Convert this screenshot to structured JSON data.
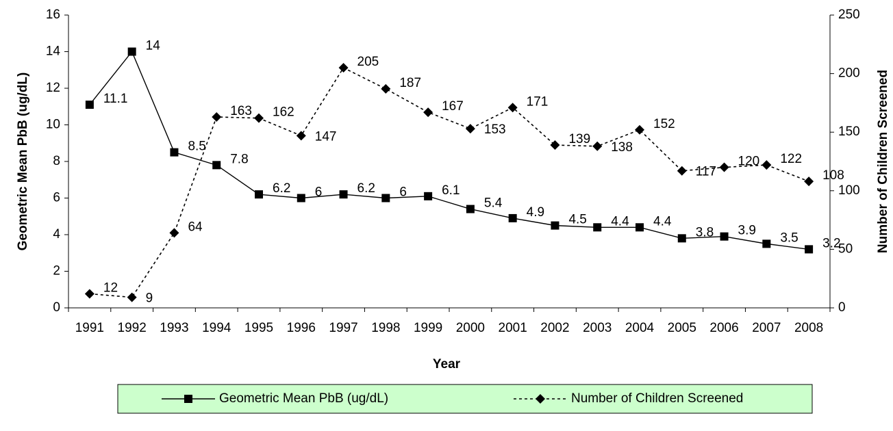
{
  "chart_data": {
    "type": "line",
    "x_label": "Year",
    "y_label": "Geometric Mean PbB (ug/dL)",
    "y2_label": "Number of Children Screened",
    "categories": [
      "1991",
      "1992",
      "1993",
      "1994",
      "1995",
      "1996",
      "1997",
      "1998",
      "1999",
      "2000",
      "2001",
      "2002",
      "2003",
      "2004",
      "2005",
      "2006",
      "2007",
      "2008"
    ],
    "series": [
      {
        "name": "Geometric Mean PbB (ug/dL)",
        "color": "#000000",
        "line_style": "solid",
        "marker": "square",
        "values": [
          11.1,
          14,
          8.5,
          7.8,
          6.2,
          6,
          6.2,
          6,
          6.1,
          5.4,
          4.9,
          4.5,
          4.4,
          4.4,
          3.8,
          3.9,
          3.5,
          3.2
        ]
      },
      {
        "name": "Number of Children Screened",
        "color": "#000000",
        "line_style": "dashed",
        "marker": "diamond",
        "axis": "y2",
        "values": [
          12,
          9,
          64,
          163,
          162,
          147,
          205,
          187,
          167,
          153,
          171,
          139,
          138,
          152,
          117,
          120,
          122,
          108
        ]
      }
    ],
    "ylim": [
      0,
      16
    ],
    "yticks": [
      0,
      2,
      4,
      6,
      8,
      10,
      12,
      14,
      16
    ],
    "y2lim": [
      0,
      250
    ],
    "y2ticks": [
      0,
      50,
      100,
      150,
      200,
      250
    ],
    "legend": "bottom",
    "legend_color": "#ccffcc",
    "grid": false
  }
}
